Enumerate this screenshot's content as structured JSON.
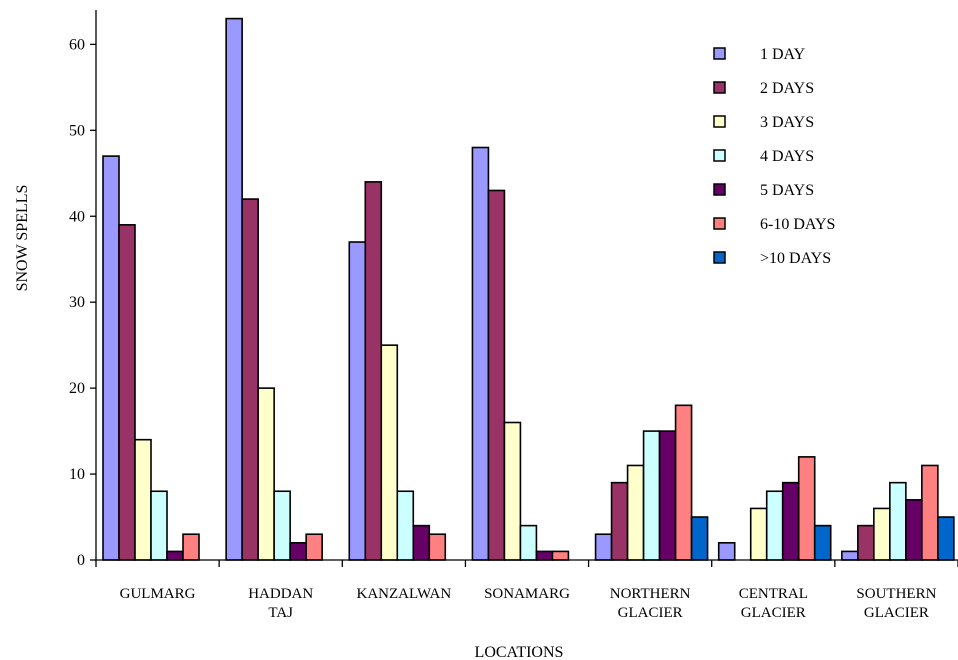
{
  "chart_data": {
    "type": "bar",
    "title": "",
    "xlabel": "LOCATIONS",
    "ylabel": "SNOW  SPELLS",
    "ylim": [
      0,
      64
    ],
    "yticks": [
      0,
      10,
      20,
      30,
      40,
      50,
      60
    ],
    "grid": false,
    "legend_position": "top-right",
    "categories": [
      [
        "GULMARG"
      ],
      [
        "HADDAN",
        "TAJ"
      ],
      [
        "KANZALWAN"
      ],
      [
        "SONAMARG"
      ],
      [
        "NORTHERN",
        "GLACIER"
      ],
      [
        "CENTRAL",
        "GLACIER"
      ],
      [
        "SOUTHERN",
        "GLACIER"
      ]
    ],
    "series": [
      {
        "name": "1 DAY",
        "color": "#9999ff",
        "values": [
          47,
          63,
          37,
          48,
          3,
          2,
          1
        ]
      },
      {
        "name": "2 DAYS",
        "color": "#993366",
        "values": [
          39,
          42,
          44,
          43,
          9,
          0,
          4
        ]
      },
      {
        "name": "3 DAYS",
        "color": "#ffffcc",
        "values": [
          14,
          20,
          25,
          16,
          11,
          6,
          6
        ]
      },
      {
        "name": "4 DAYS",
        "color": "#ccffff",
        "values": [
          8,
          8,
          8,
          4,
          15,
          8,
          9
        ]
      },
      {
        "name": "5 DAYS",
        "color": "#660066",
        "values": [
          1,
          2,
          4,
          1,
          15,
          9,
          7
        ]
      },
      {
        "name": "6-10 DAYS",
        "color": "#ff8080",
        "values": [
          3,
          3,
          3,
          1,
          18,
          12,
          11
        ]
      },
      {
        "name": ">10 DAYS",
        "color": "#0066cc",
        "values": [
          0,
          0,
          0,
          0,
          5,
          4,
          5
        ]
      }
    ]
  }
}
